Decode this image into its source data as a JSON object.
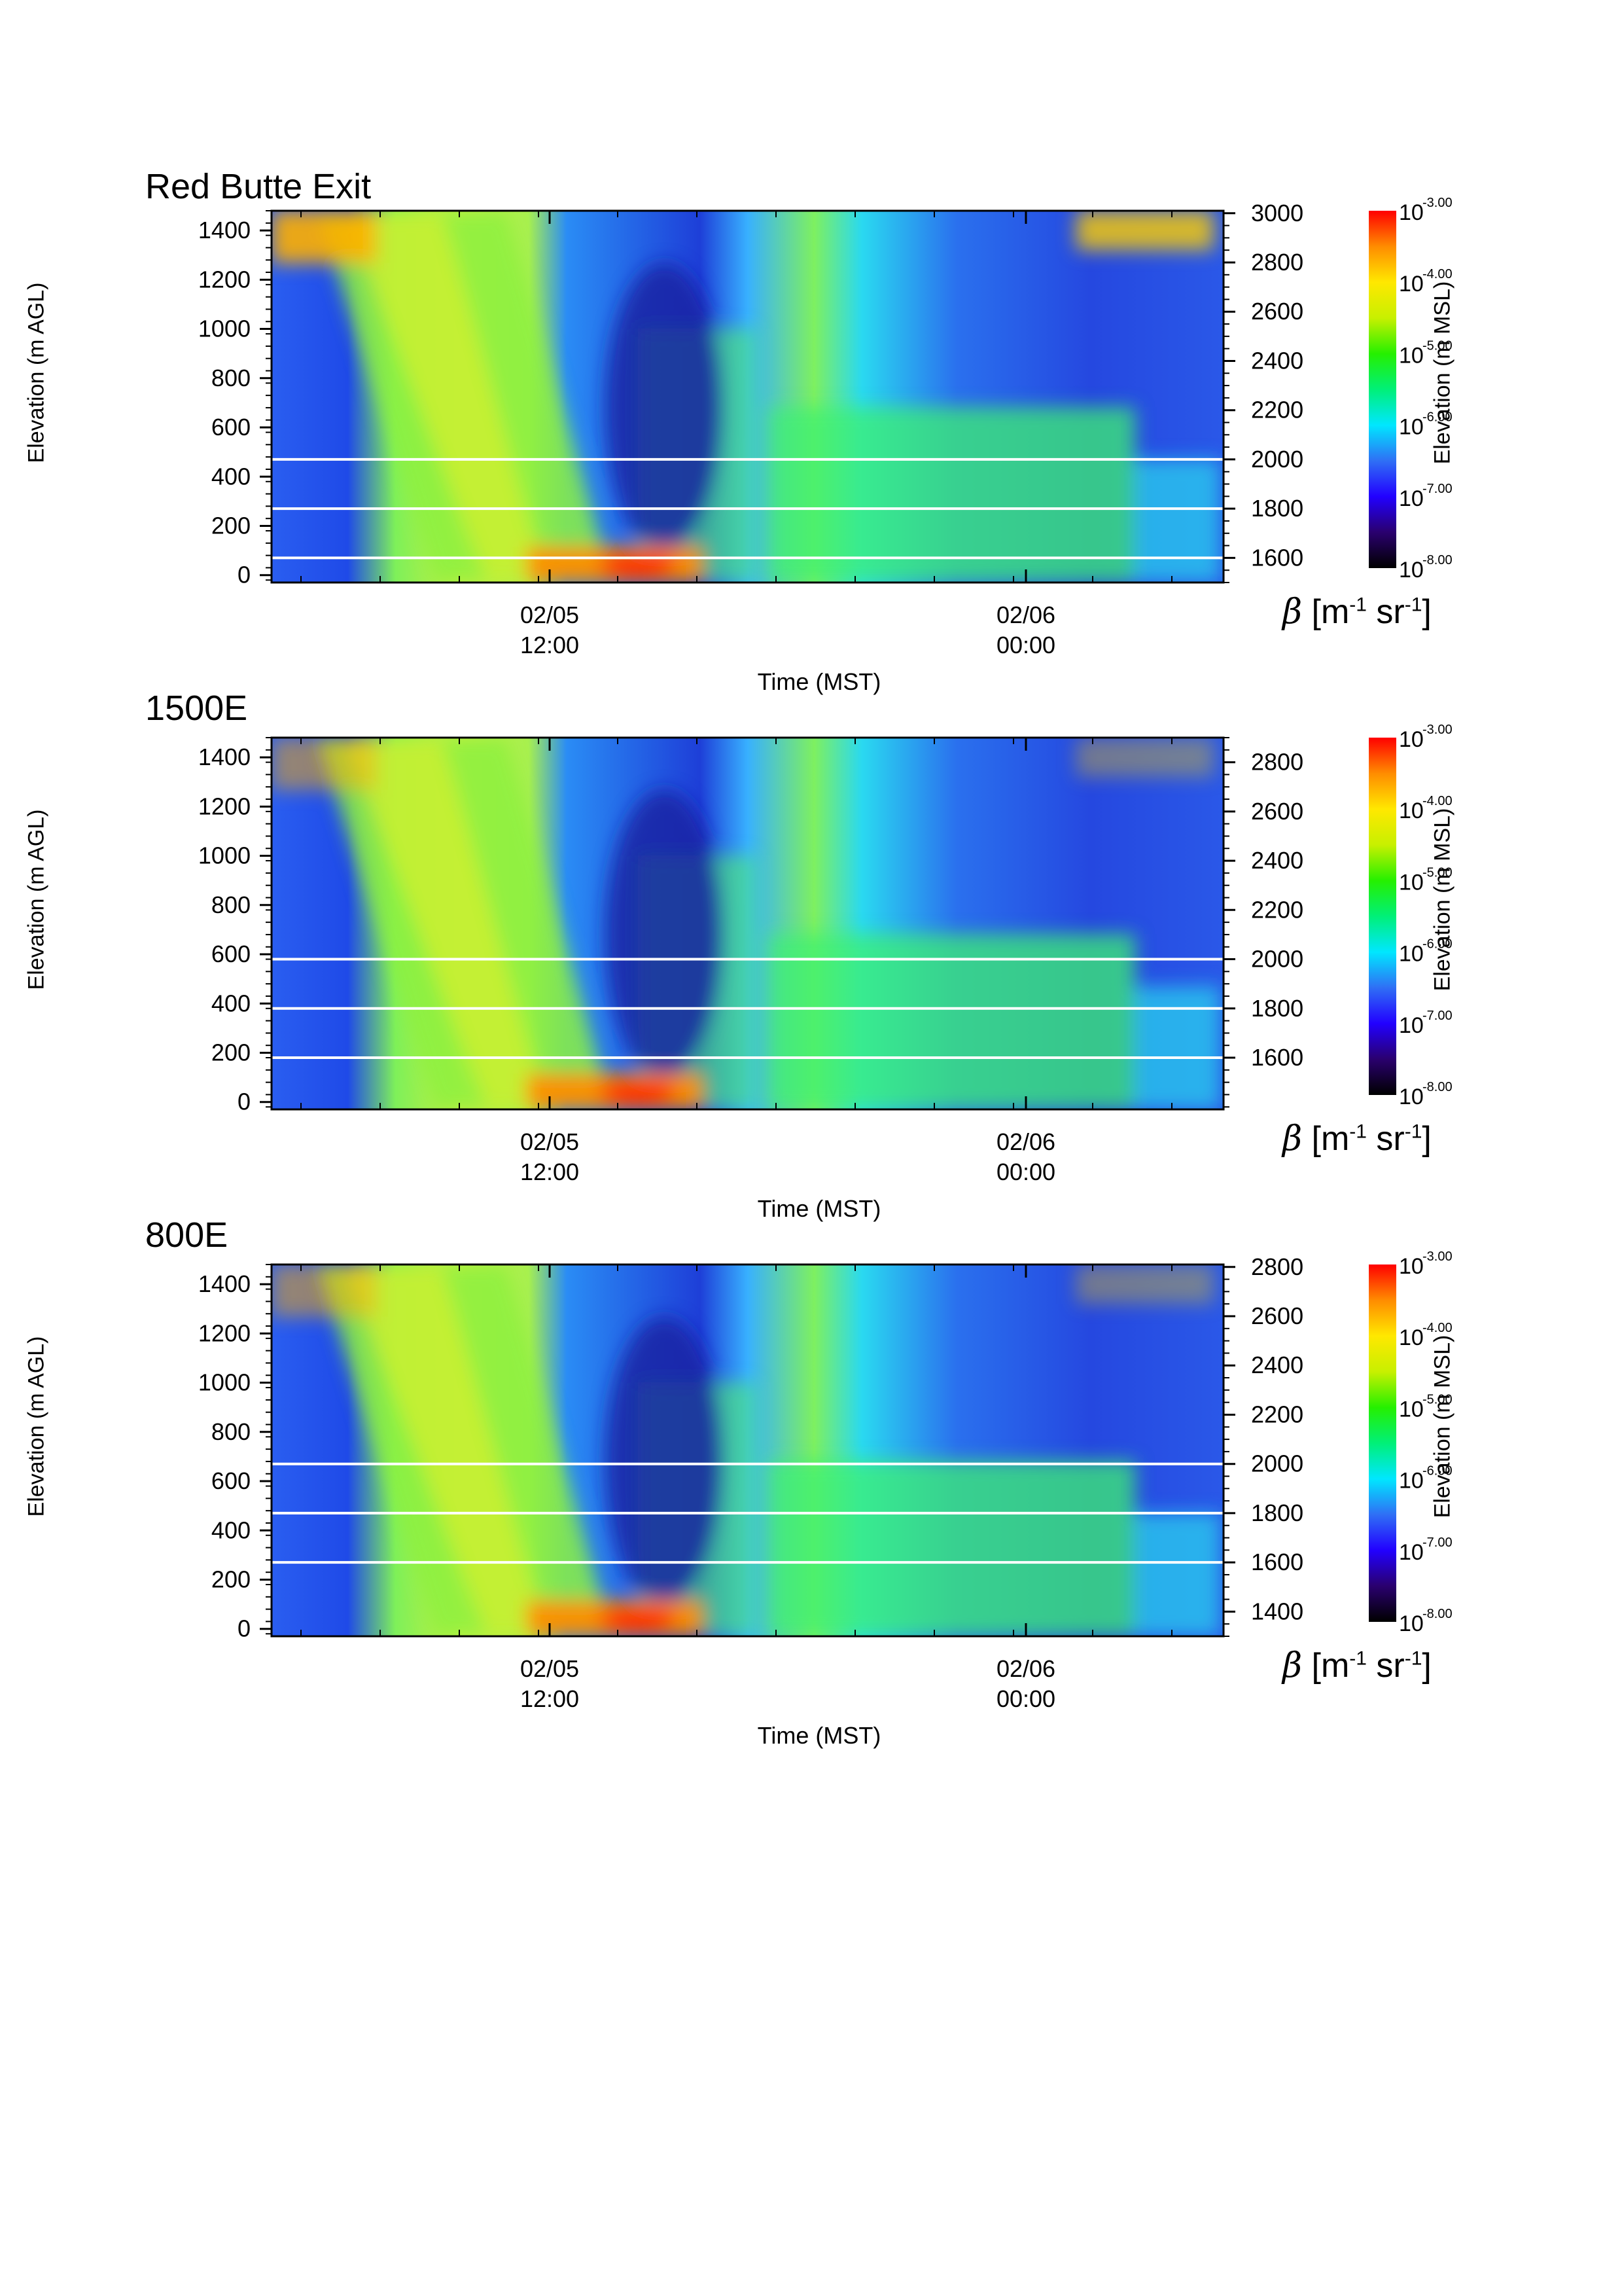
{
  "chart_data": [
    {
      "type": "heatmap",
      "title": "Red Butte Exit",
      "ylabel_left": "Elevation (m AGL)",
      "ylabel_right": "Elevation (m MSL)",
      "xlabel": "Time (MST)",
      "x_ticks": [
        {
          "date": "02/05",
          "time": "12:00"
        },
        {
          "date": "02/06",
          "time": "00:00"
        }
      ],
      "y_left_ticks": [
        0,
        200,
        400,
        600,
        800,
        1000,
        1200,
        1400
      ],
      "y_left_range": [
        -30,
        1480
      ],
      "y_right_ticks": [
        1600,
        1800,
        2000,
        2200,
        2400,
        2600,
        2800,
        3000
      ],
      "y_right_offset": 1530,
      "horizontal_lines_agl": [
        470,
        270,
        70
      ],
      "colorbar_label": "β [m-1 sr-1]",
      "colorbar_ticks": [
        "-3.00",
        "-4.00",
        "-5.00",
        "-6.00",
        "-7.00",
        "-8.00"
      ],
      "colorbar_range_log10": [
        -8,
        -3
      ]
    },
    {
      "type": "heatmap",
      "title": "1500E",
      "ylabel_left": "Elevation (m AGL)",
      "ylabel_right": "Elevation (m MSL)",
      "xlabel": "Time (MST)",
      "x_ticks": [
        {
          "date": "02/05",
          "time": "12:00"
        },
        {
          "date": "02/06",
          "time": "00:00"
        }
      ],
      "y_left_ticks": [
        0,
        200,
        400,
        600,
        800,
        1000,
        1200,
        1400
      ],
      "y_left_range": [
        -30,
        1480
      ],
      "y_right_ticks": [
        1600,
        1800,
        2000,
        2200,
        2400,
        2600,
        2800
      ],
      "y_right_offset": 1420,
      "horizontal_lines_agl": [
        580,
        380,
        180
      ],
      "colorbar_label": "β [m-1 sr-1]",
      "colorbar_ticks": [
        "-3.00",
        "-4.00",
        "-5.00",
        "-6.00",
        "-7.00",
        "-8.00"
      ],
      "colorbar_range_log10": [
        -8,
        -3
      ]
    },
    {
      "type": "heatmap",
      "title": "800E",
      "ylabel_left": "Elevation (m AGL)",
      "ylabel_right": "Elevation (m MSL)",
      "xlabel": "Time (MST)",
      "x_ticks": [
        {
          "date": "02/05",
          "time": "12:00"
        },
        {
          "date": "02/06",
          "time": "00:00"
        }
      ],
      "y_left_ticks": [
        0,
        200,
        400,
        600,
        800,
        1000,
        1200,
        1400
      ],
      "y_left_range": [
        -30,
        1480
      ],
      "y_right_ticks": [
        1400,
        1600,
        1800,
        2000,
        2200,
        2400,
        2600,
        2800
      ],
      "y_right_offset": 1330,
      "horizontal_lines_agl": [
        670,
        470,
        270
      ],
      "colorbar_label": "β [m-1 sr-1]",
      "colorbar_ticks": [
        "-3.00",
        "-4.00",
        "-5.00",
        "-6.00",
        "-7.00",
        "-8.00"
      ],
      "colorbar_range_log10": [
        -8,
        -3
      ]
    }
  ],
  "labels": {
    "beta_symbol": "β",
    "beta_units_open": "[m",
    "beta_units_m_exp": "-1",
    "beta_units_sr": " sr",
    "beta_units_sr_exp": "-1",
    "beta_units_close": "]",
    "colorbar_base": "10"
  },
  "colors": {
    "colormap": [
      "#000000",
      "#2a006e",
      "#2200ff",
      "#2f6ff5",
      "#00e7ff",
      "#00f078",
      "#25f000",
      "#c8f000",
      "#ffe800",
      "#ff8c00",
      "#ff0000"
    ],
    "guide_line": "#ffffff",
    "background": "#ffffff"
  }
}
